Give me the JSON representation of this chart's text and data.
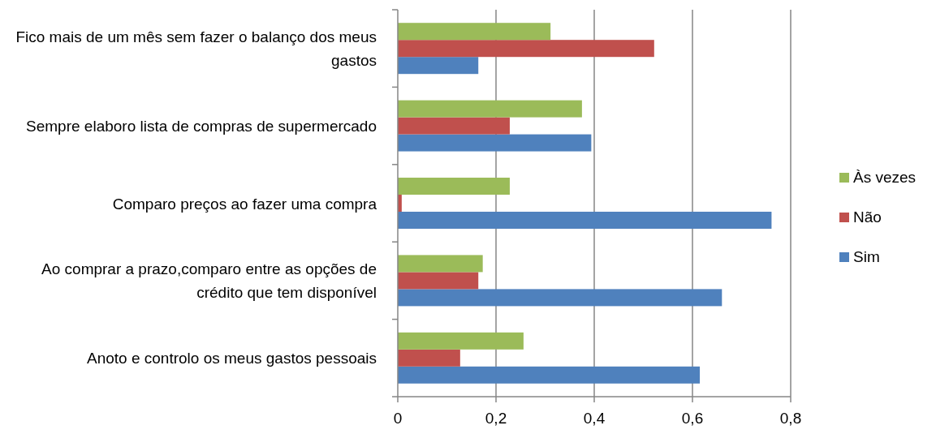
{
  "chart_data": {
    "type": "bar",
    "orientation": "horizontal",
    "categories": [
      "Fico mais de um mês sem fazer o balanço dos meus gastos",
      "Sempre elaboro lista de compras de supermercado",
      "Comparo preços ao fazer uma compra",
      "Ao comprar a prazo,comparo entre as opções de crédito que tem disponível",
      "Anoto e controlo os meus gastos pessoais"
    ],
    "series": [
      {
        "name": "Sim",
        "color": "#4f81bd",
        "values": [
          0.164,
          0.394,
          0.761,
          0.66,
          0.615
        ]
      },
      {
        "name": "Não",
        "color": "#c0504d",
        "values": [
          0.522,
          0.228,
          0.008,
          0.164,
          0.127
        ]
      },
      {
        "name": "Às vezes",
        "color": "#9bbb59",
        "values": [
          0.311,
          0.375,
          0.228,
          0.173,
          0.256
        ]
      }
    ],
    "xlim": [
      0,
      0.8
    ],
    "xticks": [
      {
        "value": 0,
        "label": "0"
      },
      {
        "value": 0.2,
        "label": "0,2"
      },
      {
        "value": 0.4,
        "label": "0,4"
      },
      {
        "value": 0.6,
        "label": "0,6"
      },
      {
        "value": 0.8,
        "label": "0,8"
      }
    ],
    "grid": "x",
    "legend": "right"
  }
}
